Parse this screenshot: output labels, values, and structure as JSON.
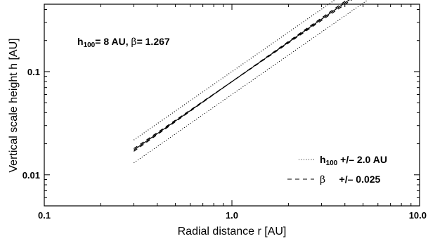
{
  "chart_data": {
    "type": "line",
    "xlabel": "Radial distance r [AU]",
    "ylabel": "Vertical scale height h [AU]",
    "xscale": "log",
    "yscale": "log",
    "xlim": [
      0.1,
      10.0
    ],
    "ylim": [
      0.005,
      0.45
    ],
    "x_tick_labels": [
      "0.1",
      "1.0",
      "10.0"
    ],
    "x_ticks": [
      0.1,
      1.0,
      10.0
    ],
    "y_tick_labels": [
      "0.01",
      "0.1"
    ],
    "y_ticks": [
      0.01,
      0.1
    ],
    "annotation": {
      "prefix": "h",
      "subscript": "100",
      "middle": "= 8 AU, ",
      "beta_symbol": "β",
      "suffix": "= 1.267"
    },
    "legend": [
      {
        "style": "dotted",
        "symbol": "h",
        "subscript": "100",
        "text": " +/– 2.0 AU"
      },
      {
        "style": "dashed",
        "symbol": "β",
        "subscript": "",
        "text": "     +/– 0.025"
      }
    ],
    "legend_position": "lower-right",
    "x_range": [
      0.3,
      10.0
    ],
    "series": [
      {
        "style": "solid",
        "h100": 8.0,
        "beta": 1.267
      },
      {
        "style": "dotted",
        "h100": 10.0,
        "beta": 1.267
      },
      {
        "style": "dotted",
        "h100": 6.0,
        "beta": 1.267
      },
      {
        "style": "dashed",
        "h100": 8.0,
        "beta": 1.292
      },
      {
        "style": "dashed",
        "h100": 8.0,
        "beta": 1.242
      }
    ]
  }
}
